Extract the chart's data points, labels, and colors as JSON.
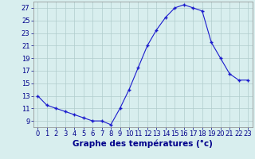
{
  "x": [
    0,
    1,
    2,
    3,
    4,
    5,
    6,
    7,
    8,
    9,
    10,
    11,
    12,
    13,
    14,
    15,
    16,
    17,
    18,
    19,
    20,
    21,
    22,
    23
  ],
  "y": [
    13.0,
    11.5,
    11.0,
    10.5,
    10.0,
    9.5,
    9.0,
    9.0,
    8.4,
    11.0,
    14.0,
    17.5,
    21.0,
    23.5,
    25.5,
    27.0,
    27.5,
    27.0,
    26.5,
    21.5,
    19.0,
    16.5,
    15.5,
    15.5
  ],
  "xlabel": "Graphe des températures (°c)",
  "ylim": [
    8.0,
    28.0
  ],
  "xlim": [
    -0.5,
    23.5
  ],
  "yticks": [
    9,
    11,
    13,
    15,
    17,
    19,
    21,
    23,
    25,
    27
  ],
  "xticks": [
    0,
    1,
    2,
    3,
    4,
    5,
    6,
    7,
    8,
    9,
    10,
    11,
    12,
    13,
    14,
    15,
    16,
    17,
    18,
    19,
    20,
    21,
    22,
    23
  ],
  "line_color": "#1a1acd",
  "marker_color": "#1a1acd",
  "bg_color": "#d8eeee",
  "grid_color": "#b0cccc",
  "xlabel_color": "#00008b",
  "xlabel_fontsize": 7.5,
  "tick_fontsize": 6.0,
  "tick_color": "#00008b"
}
